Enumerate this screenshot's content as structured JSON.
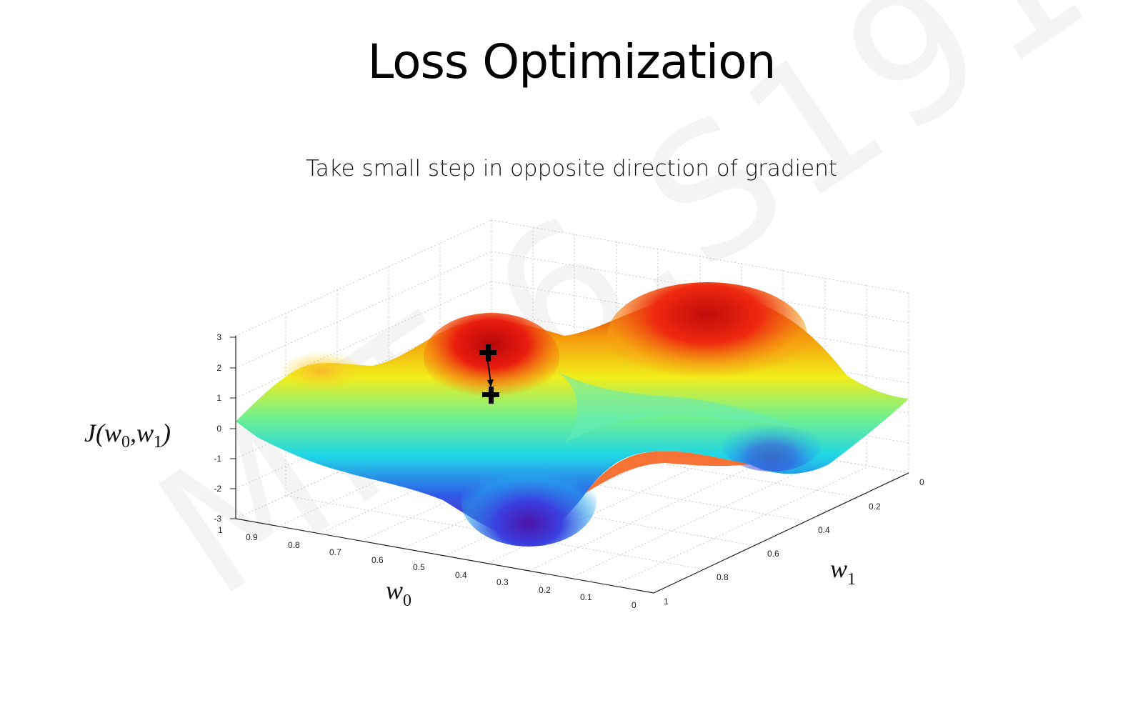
{
  "slide": {
    "title": "Loss Optimization",
    "subtitle": "Take small step in opposite direction of gradient",
    "watermark": "MIT 6.S191"
  },
  "plot": {
    "z_axis_label": {
      "main": "J(w",
      "sub0": "0",
      "mid": ",w",
      "sub1": "1",
      "end": ")"
    },
    "x_axis_label": {
      "main": "w",
      "sub": "0"
    },
    "y_axis_label": {
      "main": "w",
      "sub": "1"
    },
    "z_ticks": [
      "3",
      "2",
      "1",
      "0",
      "-1",
      "-2",
      "-3"
    ],
    "w0_ticks": [
      "1",
      "0.9",
      "0.8",
      "0.7",
      "0.6",
      "0.5",
      "0.4",
      "0.3",
      "0.2",
      "0.1",
      "0"
    ],
    "w1_ticks": [
      "0",
      "0.2",
      "0.4",
      "0.6",
      "0.8",
      "1"
    ],
    "colormap": [
      "#5a1fb8",
      "#2b58e8",
      "#1fc8e8",
      "#5ef08a",
      "#f3f01c",
      "#f5a10c",
      "#e5140f"
    ],
    "markers": [
      "start-point-icon",
      "next-point-icon",
      "gradient-step-arrow-icon"
    ]
  }
}
